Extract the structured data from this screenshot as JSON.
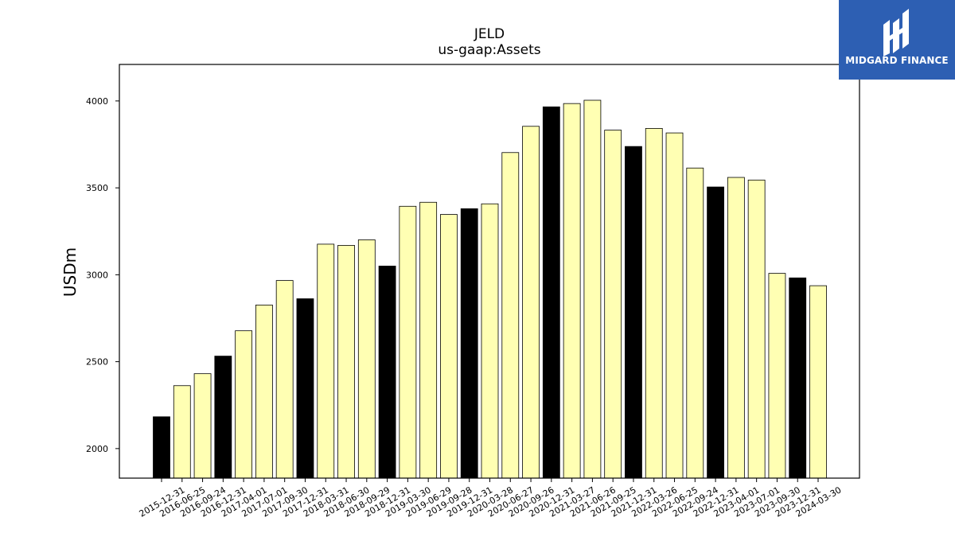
{
  "chart_data": {
    "type": "bar",
    "title": "JELD",
    "subtitle": "us-gaap:Assets",
    "ylabel": "USDm",
    "xlabel": "",
    "ylim": [
      1830,
      4210
    ],
    "yticks": [
      2000,
      2500,
      3000,
      3500,
      4000
    ],
    "grid": false,
    "highlight_color": "#000000",
    "bar_color": "#ffffb3",
    "edge_color": "#000000",
    "categories": [
      "2015-12-31",
      "2016-06-25",
      "2016-09-24",
      "2016-12-31",
      "2017-04-01",
      "2017-07-01",
      "2017-09-30",
      "2017-12-31",
      "2018-03-31",
      "2018-06-30",
      "2018-09-29",
      "2018-12-31",
      "2019-03-30",
      "2019-06-29",
      "2019-09-28",
      "2019-12-31",
      "2020-03-28",
      "2020-06-27",
      "2020-09-26",
      "2020-12-31",
      "2021-03-27",
      "2021-06-26",
      "2021-09-25",
      "2021-12-31",
      "2022-03-26",
      "2022-06-25",
      "2022-09-24",
      "2022-12-31",
      "2023-04-01",
      "2023-07-01",
      "2023-09-30",
      "2023-12-31",
      "2024-03-30"
    ],
    "values": [
      2183,
      2362,
      2431,
      2532,
      2678,
      2826,
      2967,
      2862,
      3176,
      3169,
      3201,
      3050,
      3394,
      3417,
      3347,
      3380,
      3408,
      3703,
      3854,
      3966,
      3985,
      4004,
      3832,
      3738,
      3842,
      3816,
      3614,
      3505,
      3560,
      3545,
      3008,
      2982,
      2937
    ],
    "highlighted": [
      true,
      false,
      false,
      true,
      false,
      false,
      false,
      true,
      false,
      false,
      false,
      true,
      false,
      false,
      false,
      true,
      false,
      false,
      false,
      true,
      false,
      false,
      false,
      true,
      false,
      false,
      false,
      true,
      false,
      false,
      false,
      true,
      false
    ]
  },
  "logo": {
    "text": "MIDGARD FINANCE",
    "icon": "midgard-logo-icon"
  }
}
